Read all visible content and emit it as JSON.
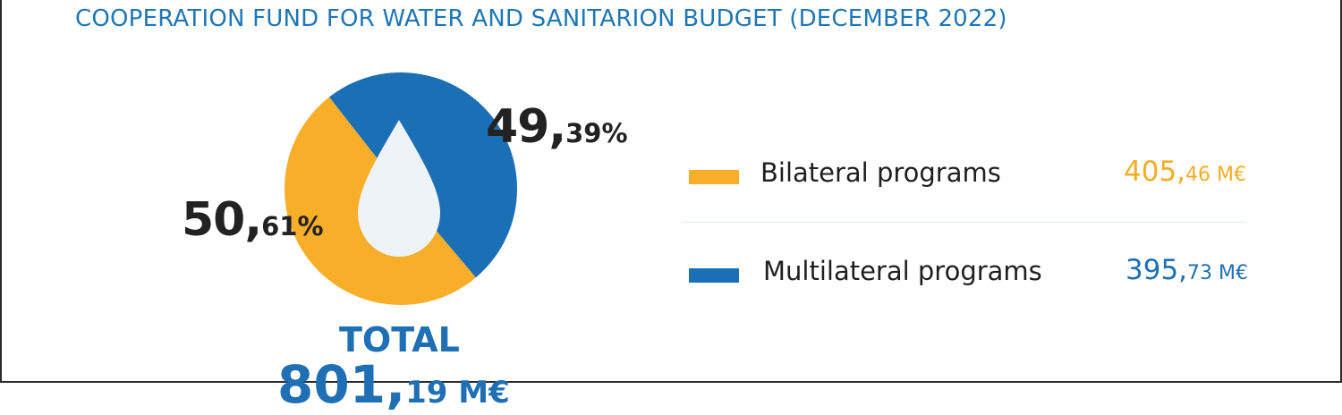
{
  "title": "COOPERATION FUND FOR WATER AND SANITARION BUDGET (DECEMBER 2022)",
  "colors": {
    "bilateral": "#f9ae2a",
    "multilateral": "#1b6fb5",
    "drop": "#eef3f7",
    "title": "#1e77b4"
  },
  "icons": {
    "center": "water-drop-icon"
  },
  "chart_data": {
    "type": "pie",
    "title": "COOPERATION FUND FOR WATER AND SANITARION BUDGET (DECEMBER 2022)",
    "series": [
      {
        "name": "Bilateral programs",
        "value": 405.46,
        "percent": 50.61,
        "color": "#f9ae2a"
      },
      {
        "name": "Multilateral programs",
        "value": 395.73,
        "percent": 49.39,
        "color": "#1b6fb5"
      }
    ],
    "total": 801.19,
    "unit": "M€",
    "legend_position": "right"
  },
  "labels": {
    "multilateral_pct_int": "49,",
    "multilateral_pct_dec": "39%",
    "bilateral_pct_int": "50,",
    "bilateral_pct_dec": "61%",
    "total_label": "TOTAL",
    "total_int": "801,",
    "total_dec": "19 M€"
  },
  "legend": [
    {
      "label": "Bilateral programs",
      "value_int": "405,",
      "value_dec": "46 M€"
    },
    {
      "label": "Multilateral programs",
      "value_int": "395,",
      "value_dec": "73 M€"
    }
  ]
}
